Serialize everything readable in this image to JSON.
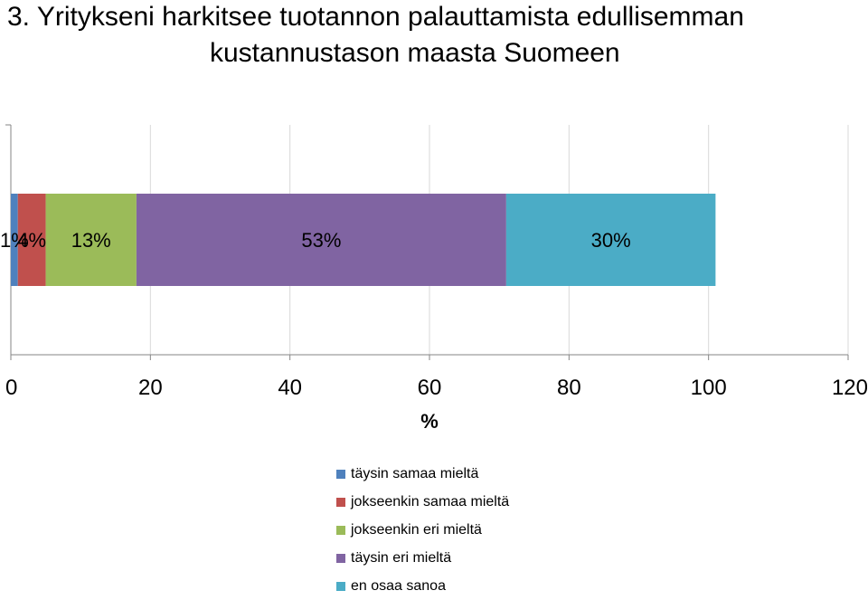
{
  "title": {
    "line1": "3. Yritykseni harkitsee tuotannon palauttamista edullisemman",
    "line2": "kustannustason maasta Suomeen"
  },
  "chart_data": {
    "type": "bar",
    "orientation": "horizontal",
    "stacked": true,
    "title": "3. Yritykseni harkitsee tuotannon palauttamista edullisemman kustannustason maasta Suomeen",
    "xlabel": "%",
    "xlim": [
      0,
      120
    ],
    "xticks": [
      0,
      20,
      40,
      60,
      80,
      100,
      120
    ],
    "tick_labels": [
      "0",
      "20",
      "40",
      "60",
      "80",
      "100",
      "120"
    ],
    "grid": true,
    "legend_position": "bottom",
    "series": [
      {
        "name": "täysin samaa mieltä",
        "values": [
          1
        ],
        "label": "1%",
        "color": "#4F81BD"
      },
      {
        "name": "jokseenkin samaa mieltä",
        "values": [
          4
        ],
        "label": "4%",
        "color": "#C0504D"
      },
      {
        "name": "jokseenkin eri mieltä",
        "values": [
          13
        ],
        "label": "13%",
        "color": "#9BBB59"
      },
      {
        "name": "täysin eri mieltä",
        "values": [
          53
        ],
        "label": "53%",
        "color": "#8064A2"
      },
      {
        "name": "en osaa sanoa",
        "values": [
          30
        ],
        "label": "30%",
        "color": "#4BACC6"
      }
    ]
  }
}
